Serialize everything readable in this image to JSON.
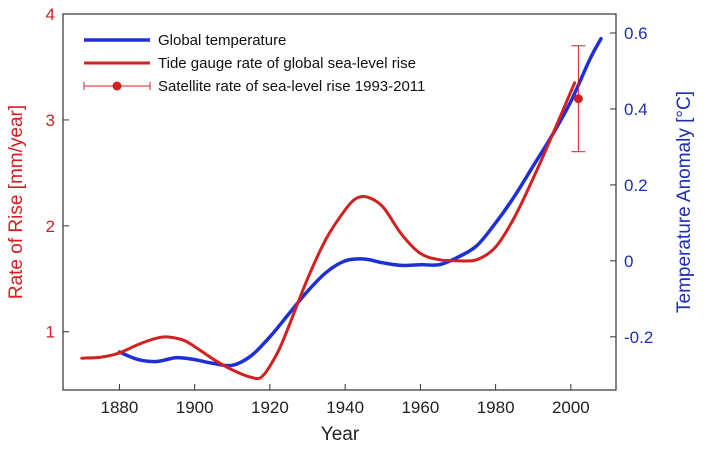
{
  "chart_data": {
    "type": "line",
    "title": "",
    "xlabel": "Year",
    "ylabel_left": "Rate of Rise [mm/year]",
    "ylabel_right": "Temperature Anomaly [°C]",
    "xlim": [
      1865,
      2012
    ],
    "ylim_left": [
      0.45,
      4.0
    ],
    "ylim_right": [
      -0.34,
      0.65
    ],
    "x_ticks": [
      1880,
      1900,
      1920,
      1940,
      1960,
      1980,
      2000
    ],
    "y_ticks_left": [
      1,
      2,
      3,
      4
    ],
    "y_ticks_right": [
      -0.2,
      0,
      0.2,
      0.4,
      0.6
    ],
    "grid": false,
    "legend_position": "top-left",
    "colors": {
      "temperature": "#1f2fd6",
      "sea_level": "#d42020",
      "left_axis": "#d42020",
      "right_axis": "#1f2fb0"
    },
    "series": [
      {
        "name": "Global temperature",
        "axis": "right",
        "color": "#1f2fd6",
        "x": [
          1880,
          1885,
          1890,
          1895,
          1900,
          1905,
          1910,
          1915,
          1920,
          1925,
          1930,
          1935,
          1940,
          1945,
          1950,
          1955,
          1960,
          1965,
          1970,
          1975,
          1980,
          1985,
          1990,
          1995,
          2000,
          2005,
          2008
        ],
        "y": [
          -0.24,
          -0.26,
          -0.265,
          -0.255,
          -0.26,
          -0.27,
          -0.275,
          -0.25,
          -0.2,
          -0.14,
          -0.08,
          -0.03,
          0.0,
          0.005,
          -0.005,
          -0.012,
          -0.01,
          -0.01,
          0.01,
          0.04,
          0.1,
          0.17,
          0.25,
          0.33,
          0.42,
          0.53,
          0.585
        ]
      },
      {
        "name": "Tide gauge rate of global sea-level rise",
        "axis": "left",
        "color": "#d42020",
        "x": [
          1870,
          1875,
          1880,
          1885,
          1890,
          1893,
          1897,
          1900,
          1905,
          1910,
          1915,
          1918,
          1922,
          1925,
          1930,
          1935,
          1940,
          1943,
          1946,
          1950,
          1955,
          1960,
          1965,
          1970,
          1975,
          1980,
          1985,
          1990,
          1995,
          2001
        ],
        "y": [
          0.75,
          0.76,
          0.8,
          0.88,
          0.94,
          0.95,
          0.92,
          0.86,
          0.74,
          0.64,
          0.57,
          0.58,
          0.8,
          1.05,
          1.5,
          1.88,
          2.15,
          2.26,
          2.27,
          2.18,
          1.92,
          1.74,
          1.68,
          1.67,
          1.68,
          1.8,
          2.08,
          2.45,
          2.85,
          3.35
        ]
      }
    ],
    "satellite_point": {
      "name": "Satellite rate of sea-level rise 1993-2011",
      "x": 2002,
      "y": 3.2,
      "error_low": 2.7,
      "error_high": 3.7,
      "color": "#d42020"
    },
    "legend": [
      {
        "label": "Global temperature",
        "key": "temperature"
      },
      {
        "label": "Tide gauge rate of global sea-level rise",
        "key": "sea_level"
      },
      {
        "label": "Satellite rate of sea-level rise 1993-2011",
        "key": "satellite"
      }
    ]
  }
}
